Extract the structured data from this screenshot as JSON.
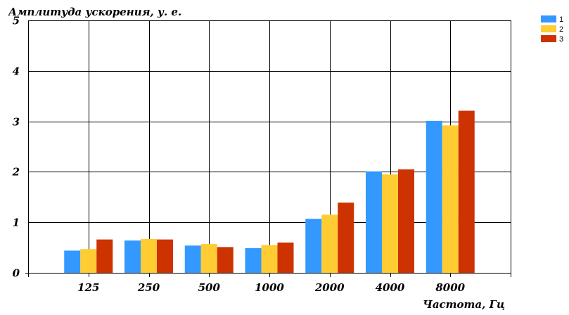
{
  "chart_data": {
    "type": "bar",
    "title": "",
    "ylabel": "Амплитуда ускорения, у. е.",
    "xlabel": "Частота, Гц",
    "categories": [
      "125",
      "250",
      "500",
      "1000",
      "2000",
      "4000",
      "8000"
    ],
    "yticks": [
      "0",
      "1",
      "2",
      "3",
      "4",
      "5"
    ],
    "ylim": [
      0,
      5
    ],
    "grid": true,
    "legend_position": "top-right",
    "series": [
      {
        "name": "1",
        "color": "#3399ff",
        "values": [
          0.44,
          0.64,
          0.54,
          0.49,
          1.07,
          2.01,
          3.01
        ]
      },
      {
        "name": "2",
        "color": "#ffcc33",
        "values": [
          0.47,
          0.67,
          0.57,
          0.55,
          1.15,
          1.95,
          2.92
        ]
      },
      {
        "name": "3",
        "color": "#cc3300",
        "values": [
          0.66,
          0.66,
          0.51,
          0.6,
          1.39,
          2.05,
          3.21
        ]
      }
    ]
  }
}
